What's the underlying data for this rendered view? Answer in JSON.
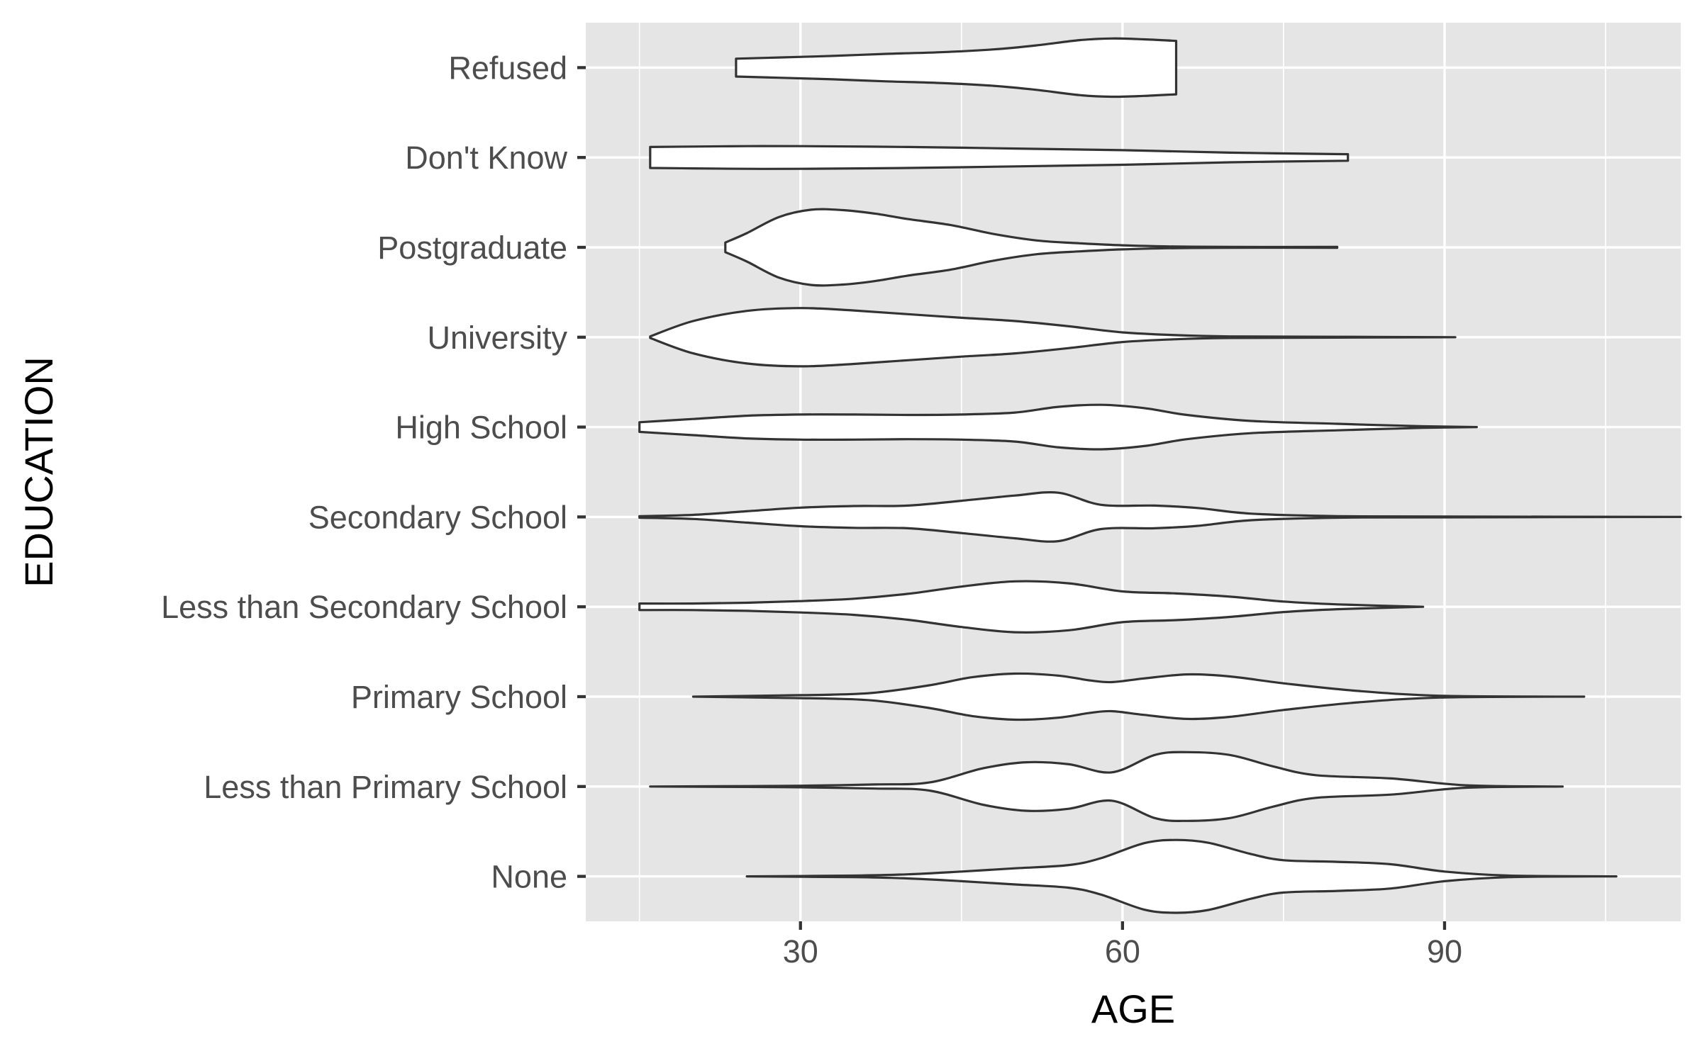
{
  "chart_data": {
    "type": "violin",
    "orientation": "horizontal",
    "xlabel": "AGE",
    "ylabel": "EDUCATION",
    "xlim": [
      10,
      112
    ],
    "x_major_ticks": [
      30,
      60,
      90
    ],
    "x_minor_ticks": [
      15,
      45,
      75,
      105
    ],
    "grid": true,
    "categories": [
      "None",
      "Less than Primary School",
      "Primary School",
      "Less than Secondary School",
      "Secondary School",
      "High School",
      "University",
      "Postgraduate",
      "Don't Know",
      "Refused"
    ],
    "series": [
      {
        "category": "None",
        "min": 25,
        "max": 106,
        "density": [
          [
            25,
            0
          ],
          [
            35,
            0.02
          ],
          [
            40,
            0.05
          ],
          [
            45,
            0.12
          ],
          [
            50,
            0.2
          ],
          [
            55,
            0.28
          ],
          [
            58,
            0.45
          ],
          [
            62,
            0.82
          ],
          [
            65,
            0.9
          ],
          [
            68,
            0.83
          ],
          [
            72,
            0.55
          ],
          [
            75,
            0.4
          ],
          [
            80,
            0.36
          ],
          [
            85,
            0.3
          ],
          [
            90,
            0.12
          ],
          [
            96,
            0.02
          ],
          [
            106,
            0
          ]
        ]
      },
      {
        "category": "Less than Primary School",
        "min": 16,
        "max": 101,
        "density": [
          [
            16,
            0
          ],
          [
            25,
            0.01
          ],
          [
            30,
            0.02
          ],
          [
            37,
            0.05
          ],
          [
            42,
            0.1
          ],
          [
            47,
            0.45
          ],
          [
            51,
            0.6
          ],
          [
            55,
            0.55
          ],
          [
            59,
            0.35
          ],
          [
            63,
            0.78
          ],
          [
            66,
            0.85
          ],
          [
            70,
            0.78
          ],
          [
            74,
            0.5
          ],
          [
            78,
            0.28
          ],
          [
            85,
            0.2
          ],
          [
            92,
            0.03
          ],
          [
            101,
            0
          ]
        ]
      },
      {
        "category": "Primary School",
        "min": 20,
        "max": 103,
        "density": [
          [
            20,
            0
          ],
          [
            28,
            0.03
          ],
          [
            33,
            0.05
          ],
          [
            37,
            0.1
          ],
          [
            42,
            0.28
          ],
          [
            46,
            0.48
          ],
          [
            50,
            0.57
          ],
          [
            54,
            0.52
          ],
          [
            57,
            0.4
          ],
          [
            59,
            0.36
          ],
          [
            62,
            0.45
          ],
          [
            66,
            0.55
          ],
          [
            70,
            0.5
          ],
          [
            75,
            0.33
          ],
          [
            82,
            0.14
          ],
          [
            90,
            0.02
          ],
          [
            103,
            0
          ]
        ]
      },
      {
        "category": "Less than Secondary School",
        "min": 15,
        "max": 88,
        "density": [
          [
            15,
            0.08
          ],
          [
            20,
            0.08
          ],
          [
            25,
            0.1
          ],
          [
            30,
            0.14
          ],
          [
            35,
            0.2
          ],
          [
            40,
            0.32
          ],
          [
            45,
            0.5
          ],
          [
            50,
            0.63
          ],
          [
            55,
            0.58
          ],
          [
            60,
            0.38
          ],
          [
            65,
            0.33
          ],
          [
            70,
            0.25
          ],
          [
            75,
            0.13
          ],
          [
            80,
            0.06
          ],
          [
            88,
            0
          ]
        ]
      },
      {
        "category": "Secondary School",
        "min": 15,
        "max": 112,
        "density": [
          [
            15,
            0.02
          ],
          [
            20,
            0.05
          ],
          [
            25,
            0.14
          ],
          [
            30,
            0.23
          ],
          [
            35,
            0.27
          ],
          [
            40,
            0.28
          ],
          [
            45,
            0.4
          ],
          [
            50,
            0.53
          ],
          [
            54,
            0.6
          ],
          [
            58,
            0.3
          ],
          [
            63,
            0.28
          ],
          [
            67,
            0.22
          ],
          [
            72,
            0.08
          ],
          [
            80,
            0.02
          ],
          [
            90,
            0.01
          ],
          [
            112,
            0
          ]
        ]
      },
      {
        "category": "High School",
        "min": 15,
        "max": 93,
        "density": [
          [
            15,
            0.12
          ],
          [
            20,
            0.2
          ],
          [
            25,
            0.28
          ],
          [
            30,
            0.31
          ],
          [
            35,
            0.31
          ],
          [
            40,
            0.3
          ],
          [
            45,
            0.31
          ],
          [
            50,
            0.36
          ],
          [
            54,
            0.5
          ],
          [
            58,
            0.55
          ],
          [
            62,
            0.47
          ],
          [
            66,
            0.3
          ],
          [
            72,
            0.15
          ],
          [
            80,
            0.08
          ],
          [
            88,
            0.02
          ],
          [
            93,
            0
          ]
        ]
      },
      {
        "category": "University",
        "min": 16,
        "max": 91,
        "density": [
          [
            16,
            0.02
          ],
          [
            20,
            0.4
          ],
          [
            25,
            0.65
          ],
          [
            30,
            0.72
          ],
          [
            35,
            0.66
          ],
          [
            40,
            0.57
          ],
          [
            45,
            0.48
          ],
          [
            50,
            0.4
          ],
          [
            55,
            0.27
          ],
          [
            60,
            0.12
          ],
          [
            65,
            0.05
          ],
          [
            70,
            0.02
          ],
          [
            80,
            0.01
          ],
          [
            91,
            0
          ]
        ]
      },
      {
        "category": "Postgraduate",
        "min": 23,
        "max": 80,
        "density": [
          [
            23,
            0.12
          ],
          [
            25,
            0.35
          ],
          [
            28,
            0.75
          ],
          [
            31,
            0.93
          ],
          [
            34,
            0.92
          ],
          [
            37,
            0.83
          ],
          [
            40,
            0.7
          ],
          [
            44,
            0.55
          ],
          [
            48,
            0.33
          ],
          [
            52,
            0.17
          ],
          [
            56,
            0.1
          ],
          [
            60,
            0.05
          ],
          [
            65,
            0.02
          ],
          [
            70,
            0.01
          ],
          [
            80,
            0.01
          ]
        ]
      },
      {
        "category": "Don't Know",
        "min": 16,
        "max": 81,
        "density": [
          [
            16,
            0.26
          ],
          [
            20,
            0.27
          ],
          [
            25,
            0.28
          ],
          [
            30,
            0.28
          ],
          [
            40,
            0.26
          ],
          [
            50,
            0.22
          ],
          [
            60,
            0.18
          ],
          [
            70,
            0.12
          ],
          [
            81,
            0.08
          ]
        ]
      },
      {
        "category": "Refused",
        "min": 24,
        "max": 65,
        "density": [
          [
            24,
            0.22
          ],
          [
            28,
            0.25
          ],
          [
            33,
            0.29
          ],
          [
            38,
            0.34
          ],
          [
            43,
            0.38
          ],
          [
            48,
            0.45
          ],
          [
            52,
            0.55
          ],
          [
            56,
            0.68
          ],
          [
            59,
            0.72
          ],
          [
            62,
            0.7
          ],
          [
            65,
            0.66
          ]
        ]
      }
    ]
  }
}
